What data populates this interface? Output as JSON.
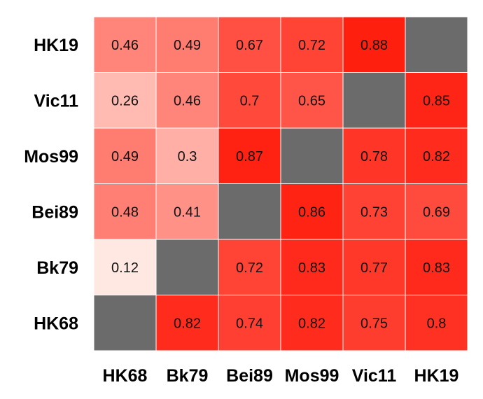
{
  "chart_data": {
    "type": "heatmap",
    "row_labels": [
      "HK19",
      "Vic11",
      "Mos99",
      "Bei89",
      "Bk79",
      "HK68"
    ],
    "col_labels": [
      "HK68",
      "Bk79",
      "Bei89",
      "Mos99",
      "Vic11",
      "HK19"
    ],
    "values": [
      [
        0.46,
        0.49,
        0.67,
        0.72,
        0.88,
        null
      ],
      [
        0.26,
        0.46,
        0.7,
        0.65,
        null,
        0.85
      ],
      [
        0.49,
        0.3,
        0.87,
        null,
        0.78,
        0.82
      ],
      [
        0.48,
        0.41,
        null,
        0.86,
        0.73,
        0.69
      ],
      [
        0.12,
        null,
        0.72,
        0.83,
        0.77,
        0.83
      ],
      [
        null,
        0.82,
        0.74,
        0.82,
        0.75,
        0.8
      ]
    ],
    "value_labels": [
      [
        "0.46",
        "0.49",
        "0.67",
        "0.72",
        "0.88",
        ""
      ],
      [
        "0.26",
        "0.46",
        "0.7",
        "0.65",
        "",
        "0.85"
      ],
      [
        "0.49",
        "0.3",
        "0.87",
        "",
        "0.78",
        "0.82"
      ],
      [
        "0.48",
        "0.41",
        "",
        "0.86",
        "0.73",
        "0.69"
      ],
      [
        "0.12",
        "",
        "0.72",
        "0.83",
        "0.77",
        "0.83"
      ],
      [
        "",
        "0.82",
        "0.74",
        "0.82",
        "0.75",
        "0.8"
      ]
    ],
    "color_scale": {
      "low_color": "#fff1ec",
      "high_color": "#ff1a0a",
      "missing_color": "#6b6b6b",
      "grid_color": "#ffffff"
    },
    "legend": "none",
    "title": "",
    "xlabel": "",
    "ylabel": ""
  }
}
